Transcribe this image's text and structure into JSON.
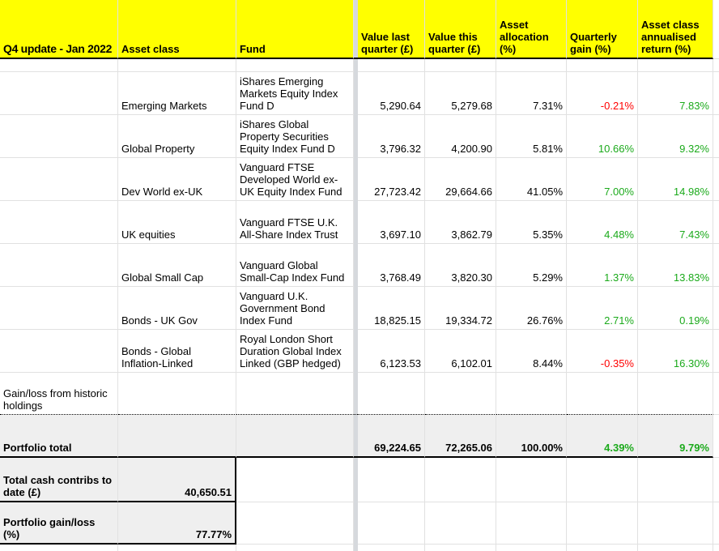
{
  "sheet_title": "Q4 update - Jan 2022",
  "header": {
    "title": "Q4 update - Jan 2022",
    "asset_class": "Asset class",
    "fund": "Fund",
    "value_last": "Value last quarter (£)",
    "value_this": "Value this quarter (£)",
    "allocation": "Asset allocation (%)",
    "quarterly_gain": "Quarterly gain (%)",
    "annualised_return": "Asset class annualised return (%)"
  },
  "table": {
    "rows": [
      {
        "asset_class": "Emerging Markets",
        "fund": "iShares Emerging Markets Equity Index Fund D",
        "value_last": "5,290.64",
        "value_this": "5,279.68",
        "allocation": "7.31%",
        "quarterly_gain": "-0.21%",
        "annualised_return": "7.83%"
      },
      {
        "asset_class": "Global Property",
        "fund": "iShares Global Property Securities Equity Index Fund D",
        "value_last": "3,796.32",
        "value_this": "4,200.90",
        "allocation": "5.81%",
        "quarterly_gain": "10.66%",
        "annualised_return": "9.32%"
      },
      {
        "asset_class": "Dev World ex-UK",
        "fund": "Vanguard FTSE Developed World ex-UK Equity Index Fund",
        "value_last": "27,723.42",
        "value_this": "29,664.66",
        "allocation": "41.05%",
        "quarterly_gain": "7.00%",
        "annualised_return": "14.98%"
      },
      {
        "asset_class": "UK equities",
        "fund": "Vanguard FTSE U.K. All-Share Index Trust",
        "value_last": "3,697.10",
        "value_this": "3,862.79",
        "allocation": "5.35%",
        "quarterly_gain": "4.48%",
        "annualised_return": "7.43%"
      },
      {
        "asset_class": "Global Small Cap",
        "fund": "Vanguard Global Small-Cap Index Fund",
        "value_last": "3,768.49",
        "value_this": "3,820.30",
        "allocation": "5.29%",
        "quarterly_gain": "1.37%",
        "annualised_return": "13.83%"
      },
      {
        "asset_class": "Bonds - UK Gov",
        "fund": "Vanguard U.K. Government Bond Index Fund",
        "value_last": "18,825.15",
        "value_this": "19,334.72",
        "allocation": "26.76%",
        "quarterly_gain": "2.71%",
        "annualised_return": "0.19%"
      },
      {
        "asset_class": "Bonds - Global Inflation-Linked",
        "fund": "Royal London Short Duration Global Index Linked (GBP hedged)",
        "value_last": "6,123.53",
        "value_this": "6,102.01",
        "allocation": "8.44%",
        "quarterly_gain": "-0.35%",
        "annualised_return": "16.30%"
      }
    ],
    "historic_label": "Gain/loss from historic holdings",
    "total": {
      "label": "Portfolio total",
      "value_last": "69,224.65",
      "value_this": "72,265.06",
      "allocation": "100.00%",
      "quarterly_gain": "4.39%",
      "annualised_return": "9.79%"
    },
    "cash_contribs": {
      "label": "Total cash contribs to date (£)",
      "value": "40,650.51"
    },
    "portfolio_gainloss": {
      "label": "Portfolio gain/loss (%)",
      "value": "77.77%"
    }
  },
  "colors": {
    "header_fill": "#ffff00",
    "total_row_fill": "#efefef",
    "positive_value": "#1baa1b",
    "negative_value": "#ff0000",
    "gridline": "#e1e1e1",
    "frozen_pane_divider": "#d6d9dd"
  }
}
